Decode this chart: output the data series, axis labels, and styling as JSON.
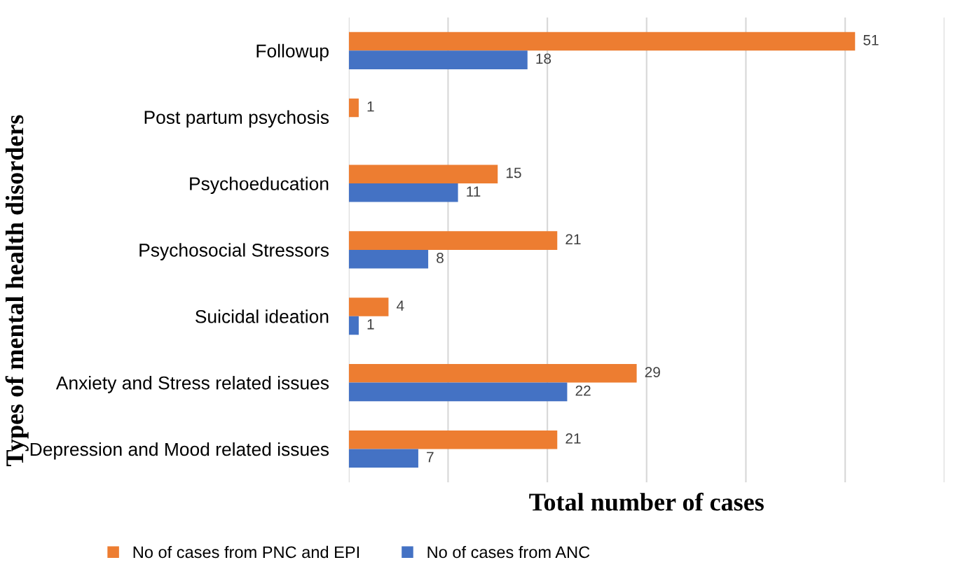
{
  "chart_data": {
    "type": "bar",
    "orientation": "horizontal",
    "xlabel": "Total number of cases",
    "ylabel": "Types of mental health disorders",
    "categories": [
      "Followup",
      "Post partum psychosis",
      "Psychoeducation",
      "Psychosocial Stressors",
      "Suicidal ideation",
      "Anxiety and Stress related issues",
      "Depression and Mood related issues"
    ],
    "series": [
      {
        "name": "No of cases from PNC and EPI",
        "color": "#ed7d31",
        "values": [
          51,
          1,
          15,
          21,
          4,
          29,
          21
        ]
      },
      {
        "name": "No of cases from ANC",
        "color": "#4472c4",
        "values": [
          18,
          null,
          11,
          8,
          1,
          22,
          7
        ]
      }
    ],
    "xlim": [
      0,
      60
    ],
    "xticks": [
      {
        "value": 0,
        "label": null
      },
      {
        "value": 10,
        "label": null
      },
      {
        "value": 20,
        "label": null
      },
      {
        "value": 30,
        "label": null
      },
      {
        "value": 40,
        "label": null
      },
      {
        "value": 50,
        "label": null
      },
      {
        "value": 60,
        "label": null
      }
    ],
    "grid": "x",
    "legend": "bottom",
    "data_labels": true
  }
}
